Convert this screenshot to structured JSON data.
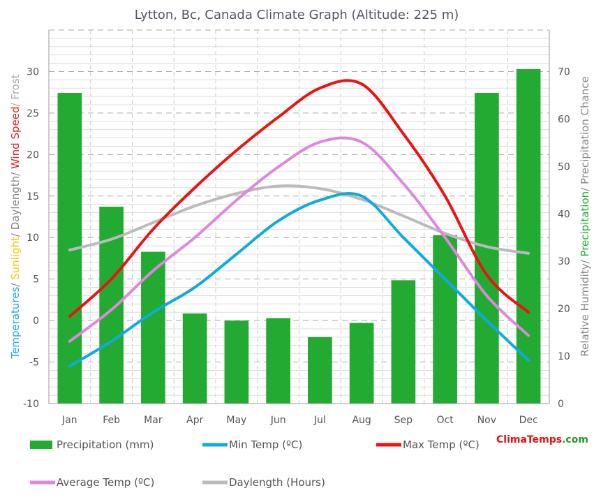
{
  "chart_data": {
    "type": "bar",
    "title": "Lytton, Bc, Canada Climate Graph (Altitude: 225 m)",
    "categories": [
      "Jan",
      "Feb",
      "Mar",
      "Apr",
      "May",
      "Jun",
      "Jul",
      "Aug",
      "Sep",
      "Oct",
      "Nov",
      "Dec"
    ],
    "left_axis": {
      "ylim": [
        -10,
        35
      ],
      "ticks": [
        -10,
        -5,
        0,
        5,
        10,
        15,
        20,
        25,
        30
      ],
      "label_parts": [
        {
          "text": "Temperatures",
          "color": "#22aadd"
        },
        {
          "text": "/ ",
          "color": "#888888"
        },
        {
          "text": "Sunlight",
          "color": "#eecc00"
        },
        {
          "text": "/ Daylength",
          "color": "#888888"
        },
        {
          "text": "/ ",
          "color": "#888888"
        },
        {
          "text": "Wind Speed",
          "color": "#dd2222"
        },
        {
          "text": "/ Frost",
          "color": "#aaaaaa"
        }
      ]
    },
    "right_axis": {
      "ylim": [
        0,
        78.75
      ],
      "ticks": [
        0,
        10,
        20,
        30,
        40,
        50,
        60,
        70
      ],
      "label_parts": [
        {
          "text": "Relative Humidity",
          "color": "#888888"
        },
        {
          "text": "/ ",
          "color": "#888888"
        },
        {
          "text": "Precipitation",
          "color": "#22aa33"
        },
        {
          "text": "/ Precipitation Chance",
          "color": "#888888"
        }
      ]
    },
    "series": [
      {
        "name": "Precipitation (mm)",
        "kind": "bar",
        "axis": "right",
        "color": "#22aa33",
        "values": [
          65.5,
          41.5,
          32.0,
          19.0,
          17.5,
          18.0,
          14.0,
          17.0,
          26.0,
          35.5,
          65.5,
          70.5
        ]
      },
      {
        "name": "Min Temp (ºC)",
        "kind": "line",
        "axis": "left",
        "color": "#11aadd",
        "values": [
          -5.5,
          -2.5,
          1.0,
          4.0,
          8.0,
          12.0,
          14.5,
          15.0,
          10.0,
          5.0,
          0.0,
          -4.8
        ]
      },
      {
        "name": "Max Temp (ºC)",
        "kind": "line",
        "axis": "left",
        "color": "#ee1111",
        "values": [
          0.5,
          5.0,
          11.0,
          16.0,
          20.5,
          24.5,
          28.0,
          28.5,
          22.5,
          15.0,
          5.5,
          1.0
        ]
      },
      {
        "name": "Average Temp (ºC)",
        "kind": "line",
        "axis": "left",
        "color": "#dd88dd",
        "values": [
          -2.5,
          1.3,
          6.0,
          10.0,
          14.5,
          18.5,
          21.5,
          21.5,
          16.5,
          10.0,
          3.0,
          -1.8
        ]
      },
      {
        "name": "Daylength (Hours)",
        "kind": "line",
        "axis": "left",
        "color": "#bbbbbb",
        "values": [
          8.5,
          9.8,
          11.8,
          13.8,
          15.3,
          16.2,
          15.9,
          14.6,
          12.6,
          10.5,
          8.9,
          8.1
        ]
      }
    ],
    "grid": true,
    "legend_placement": "bottom"
  },
  "brand": {
    "part1": "Clima",
    "part2": "Temps",
    "part3": ".com"
  }
}
